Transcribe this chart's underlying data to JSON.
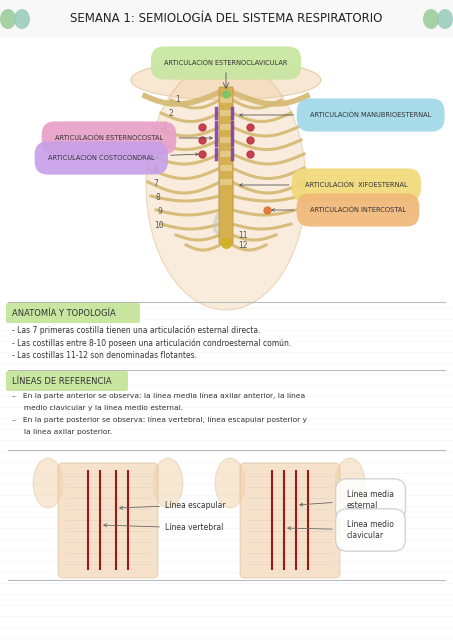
{
  "title": "SEMANA 1: SEMIOLOGÍA DEL SISTEMA RESPIRATORIO",
  "title_fontsize": 8.5,
  "bg_color": "#ffffff",
  "section1_title": "ANATOMÍA Y TOPOLOGÍA",
  "section1_bullets": [
    "- Las 7 primeras costilla tienen una articulación esternal directa.",
    "- Las costillas entre 8-10 poseen una articulación condroesternal común.",
    "- Las costillas 11-12 son denominadas flotantes."
  ],
  "section2_title": "LÍNEAS DE REFERENCIA",
  "label_bg_green": "#c8e6a0",
  "label_bg_pink": "#e8a0c8",
  "label_bg_purple": "#c8a0e8",
  "label_bg_blue": "#a0d8e8",
  "label_bg_yellow": "#f0d878",
  "label_bg_orange": "#f0b878",
  "label_bg_top": "#c8e6a0",
  "body_color": "#f0d0a8",
  "body_edge": "#d4a870",
  "line_color": "#990000",
  "stripe_color": "#e8eef8",
  "dot_green": "#90c890",
  "dot_mint": "#90c8b8",
  "rib_color": "#d4b870",
  "sternum_color": "#d4b050",
  "cartilage_color": "#e8d090",
  "purple_mark": "#8040b0",
  "red_mark": "#c03040",
  "yellow_mark": "#d0b020",
  "orange_mark": "#e07030"
}
